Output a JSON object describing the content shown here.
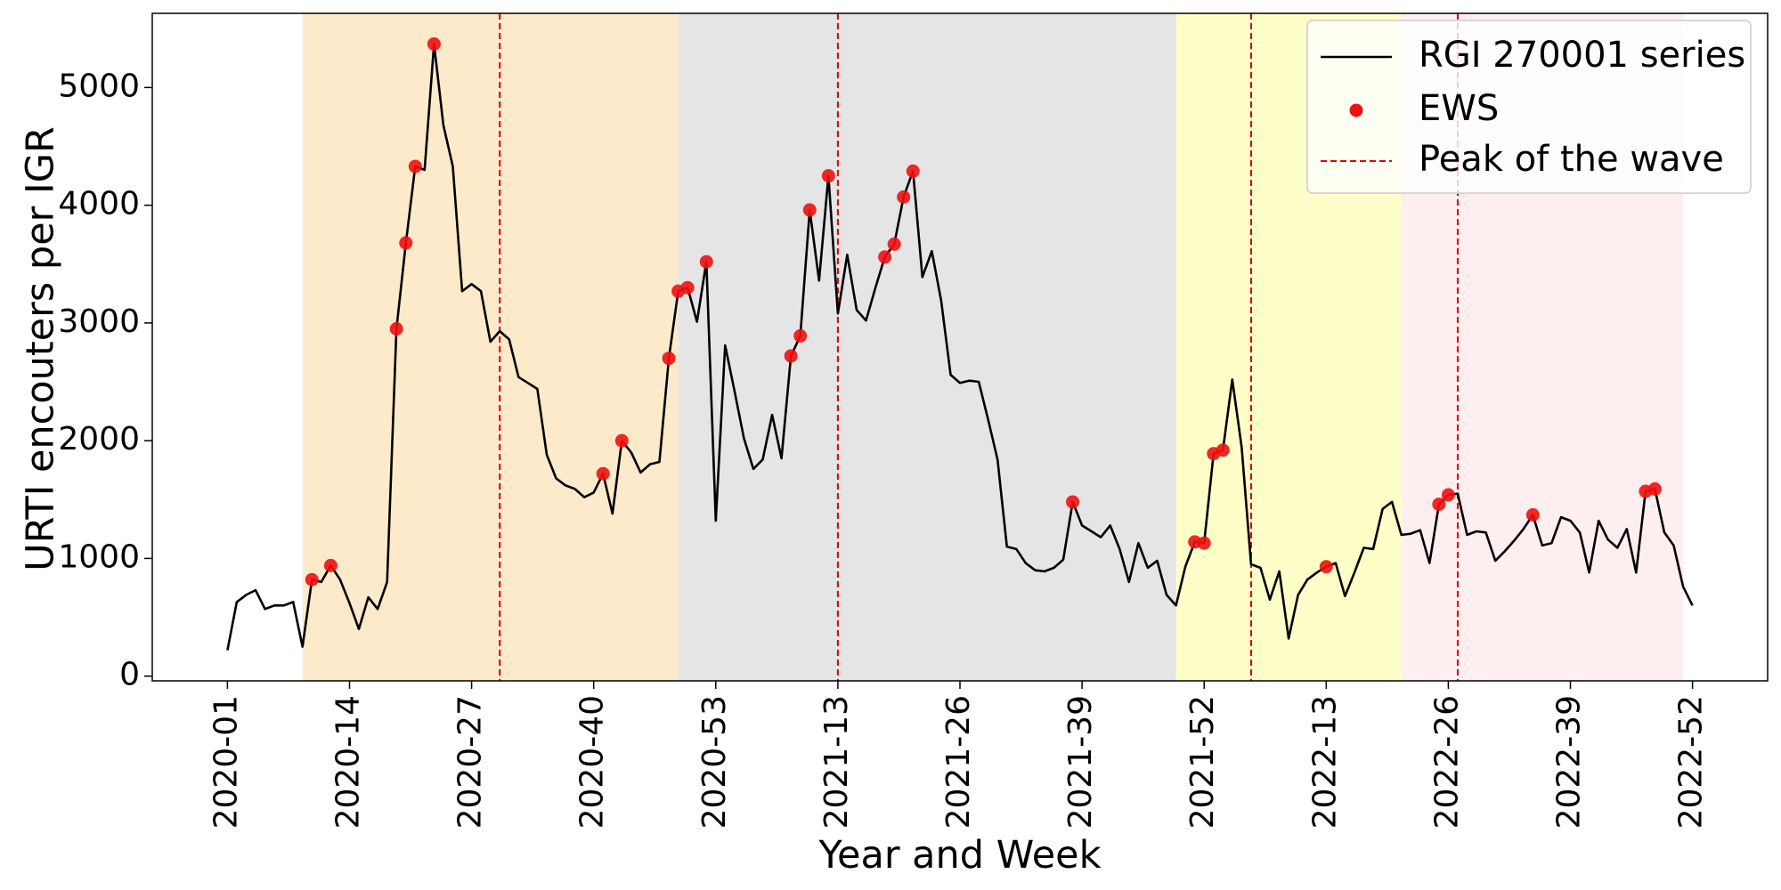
{
  "chart_data": {
    "type": "line",
    "xlabel": "Year and Week",
    "ylabel": "URTI encouters per IGR",
    "categories": [
      "2020-01",
      null,
      null,
      null,
      null,
      null,
      null,
      null,
      null,
      null,
      null,
      null,
      null,
      "2020-14",
      null,
      null,
      null,
      null,
      null,
      null,
      null,
      null,
      null,
      null,
      null,
      null,
      "2020-27",
      null,
      null,
      null,
      null,
      null,
      null,
      null,
      null,
      null,
      null,
      null,
      null,
      "2020-40",
      null,
      null,
      null,
      null,
      null,
      null,
      null,
      null,
      null,
      null,
      null,
      null,
      "2020-53",
      null,
      null,
      null,
      null,
      null,
      null,
      null,
      null,
      null,
      null,
      null,
      null,
      "2021-13",
      null,
      null,
      null,
      null,
      null,
      null,
      null,
      null,
      null,
      null,
      null,
      null,
      "2021-26",
      null,
      null,
      null,
      null,
      null,
      null,
      null,
      null,
      null,
      null,
      null,
      null,
      "2021-39",
      null,
      null,
      null,
      null,
      null,
      null,
      null,
      null,
      null,
      null,
      null,
      null,
      "2021-52",
      null,
      null,
      null,
      null,
      null,
      null,
      null,
      null,
      null,
      null,
      null,
      null,
      "2022-13",
      null,
      null,
      null,
      null,
      null,
      null,
      null,
      null,
      null,
      null,
      null,
      null,
      "2022-26",
      null,
      null,
      null,
      null,
      null,
      null,
      null,
      null,
      null,
      null,
      null,
      null,
      "2022-39",
      null,
      null,
      null,
      null,
      null,
      null,
      null,
      null,
      null,
      null,
      null,
      null,
      "2022-52"
    ],
    "series": [
      {
        "name": "RGI 270001 series",
        "color": "#000000",
        "values": [
          220,
          630,
          690,
          730,
          570,
          600,
          600,
          630,
          250,
          820,
          800,
          940,
          820,
          620,
          400,
          670,
          570,
          800,
          2950,
          3680,
          4330,
          4300,
          5370,
          4680,
          4330,
          3270,
          3330,
          3270,
          2840,
          2930,
          2860,
          2540,
          2490,
          2440,
          1880,
          1680,
          1620,
          1590,
          1520,
          1560,
          1720,
          1380,
          2000,
          1900,
          1730,
          1800,
          1820,
          2700,
          3270,
          3300,
          3010,
          3520,
          1320,
          2810,
          2420,
          2020,
          1760,
          1840,
          2220,
          1850,
          2720,
          2890,
          3960,
          3360,
          4250,
          3080,
          3580,
          3110,
          3020,
          3300,
          3560,
          3670,
          4070,
          4290,
          3390,
          3610,
          3190,
          2560,
          2490,
          2510,
          2500,
          2180,
          1840,
          1100,
          1080,
          960,
          900,
          890,
          920,
          990,
          1480,
          1280,
          1230,
          1180,
          1280,
          1080,
          800,
          1130,
          920,
          980,
          690,
          600,
          930,
          1140,
          1130,
          1890,
          1920,
          2520,
          1940,
          950,
          920,
          650,
          890,
          320,
          690,
          820,
          880,
          930,
          960,
          680,
          880,
          1090,
          1080,
          1420,
          1480,
          1200,
          1210,
          1240,
          960,
          1460,
          1540,
          1550,
          1200,
          1230,
          1220,
          980,
          1060,
          1150,
          1250,
          1370,
          1110,
          1130,
          1350,
          1320,
          1220,
          880,
          1320,
          1160,
          1090,
          1250,
          880,
          1570,
          1590,
          1220,
          1110,
          760,
          600
        ]
      },
      {
        "name": "EWS",
        "color": "#ee1111",
        "values": [
          null,
          null,
          null,
          null,
          null,
          null,
          null,
          null,
          null,
          820,
          null,
          940,
          null,
          null,
          null,
          null,
          null,
          null,
          2950,
          3680,
          4330,
          null,
          5370,
          null,
          null,
          null,
          null,
          null,
          null,
          null,
          null,
          null,
          null,
          null,
          null,
          null,
          null,
          null,
          null,
          null,
          1720,
          null,
          2000,
          null,
          null,
          null,
          null,
          2700,
          3270,
          3300,
          null,
          3520,
          null,
          null,
          null,
          null,
          null,
          null,
          null,
          null,
          2720,
          2890,
          3960,
          null,
          4250,
          null,
          null,
          null,
          null,
          null,
          3560,
          3670,
          4070,
          4290,
          null,
          null,
          null,
          null,
          null,
          null,
          null,
          null,
          null,
          null,
          null,
          null,
          null,
          null,
          null,
          null,
          1480,
          null,
          null,
          null,
          null,
          null,
          null,
          null,
          null,
          null,
          null,
          null,
          null,
          1140,
          1130,
          1890,
          1920,
          null,
          null,
          null,
          null,
          null,
          null,
          null,
          null,
          null,
          null,
          930,
          null,
          null,
          null,
          null,
          null,
          null,
          null,
          null,
          null,
          null,
          null,
          1460,
          1540,
          null,
          null,
          null,
          null,
          null,
          null,
          null,
          null,
          1370,
          null,
          null,
          null,
          null,
          null,
          null,
          null,
          null,
          null,
          null,
          null,
          1570,
          1590,
          null,
          null,
          null,
          null
        ]
      }
    ],
    "peaks": {
      "name": "Peak of the wave",
      "color": "#dd0000",
      "positions": [
        29,
        65,
        109,
        131
      ]
    },
    "regions": [
      {
        "range": [
          8,
          48
        ],
        "color": "#fdeaca"
      },
      {
        "range": [
          48,
          101
        ],
        "color": "#e5e5e5"
      },
      {
        "range": [
          101,
          125
        ],
        "color": "#fefec9"
      },
      {
        "range": [
          125,
          155
        ],
        "color": "#fdeef0"
      }
    ],
    "xlim": [
      -8,
      164
    ],
    "ylim": [
      -40,
      5630
    ],
    "yticks": [
      0,
      1000,
      2000,
      3000,
      4000,
      5000
    ],
    "legend": "upper right"
  }
}
